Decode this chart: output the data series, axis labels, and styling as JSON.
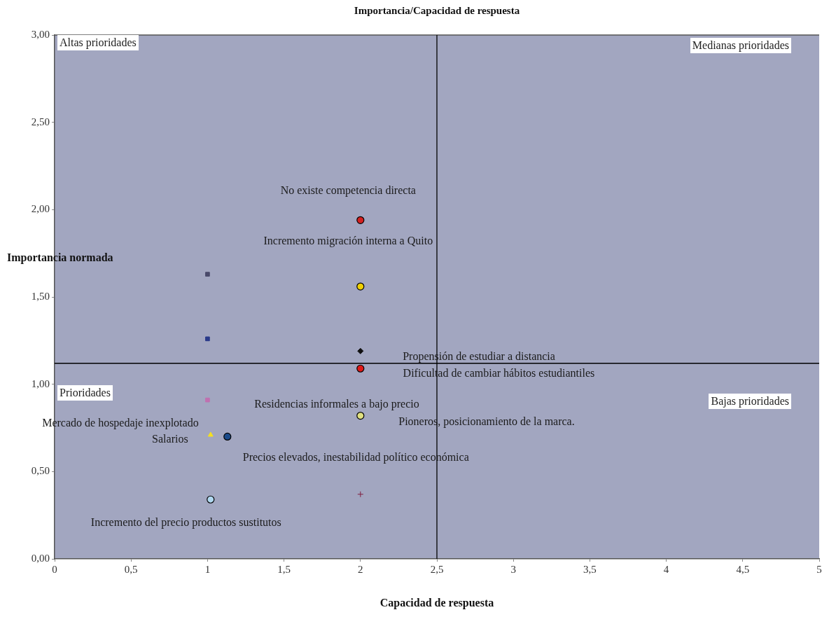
{
  "chart_data": {
    "type": "scatter",
    "title": "Importancia/Capacidad de respuesta",
    "xlabel": "Capacidad de respuesta",
    "ylabel": "Importancia normada",
    "xlim": [
      0,
      5
    ],
    "xticks": [
      0,
      {
        "value": 0.5,
        "label": "0,5"
      },
      1,
      {
        "value": 1.5,
        "label": "1,5"
      },
      2,
      {
        "value": 2.5,
        "label": "2,5"
      },
      3,
      {
        "value": 3.5,
        "label": "3,5"
      },
      4,
      {
        "value": 4.5,
        "label": "4,5"
      },
      5
    ],
    "ylim": [
      0,
      3
    ],
    "yticks": [
      {
        "value": 0,
        "label": "0,00"
      },
      {
        "value": 0.5,
        "label": "0,50"
      },
      {
        "value": 1,
        "label": "1,00"
      },
      {
        "value": 1.5,
        "label": "1,50"
      },
      {
        "value": 2,
        "label": "2,00"
      },
      {
        "value": 2.5,
        "label": "2,50"
      },
      {
        "value": 3,
        "label": "3,00"
      }
    ],
    "grid": false,
    "legend": false,
    "series": [
      {
        "x": [
          2
        ],
        "values": [
          1.94
        ],
        "color": "#d42020",
        "marker": "circle"
      },
      {
        "x": [
          2
        ],
        "values": [
          1.56
        ],
        "color": "#f0d000",
        "marker": "circle"
      },
      {
        "x": [
          2
        ],
        "values": [
          1.19
        ],
        "color": "#101010",
        "marker": "diamond"
      },
      {
        "x": [
          2
        ],
        "values": [
          1.09
        ],
        "color": "#e01818",
        "marker": "circle"
      },
      {
        "x": [
          1
        ],
        "values": [
          1.63
        ],
        "color": "#4a4a6a",
        "marker": "square"
      },
      {
        "x": [
          1
        ],
        "values": [
          1.26
        ],
        "color": "#2a3a8a",
        "marker": "square"
      },
      {
        "x": [
          1
        ],
        "values": [
          0.91
        ],
        "color": "#c070b0",
        "marker": "square"
      },
      {
        "x": [
          2
        ],
        "values": [
          0.82
        ],
        "color": "#e0e080",
        "marker": "circle"
      },
      {
        "x": [
          1.02
        ],
        "values": [
          0.71
        ],
        "color": "#f5e020",
        "marker": "triangle"
      },
      {
        "x": [
          1.13
        ],
        "values": [
          0.7
        ],
        "color": "#1a4a8a",
        "marker": "circle"
      },
      {
        "x": [
          1.02
        ],
        "values": [
          0.34
        ],
        "color": "#b0d8f0",
        "marker": "circle"
      },
      {
        "x": [
          2
        ],
        "values": [
          0.37
        ],
        "color": "#802040",
        "marker": "cross"
      }
    ],
    "ref_lines": [
      {
        "axis": "x",
        "value": 2.5,
        "color": "#000000"
      },
      {
        "axis": "y",
        "value": 1.12,
        "color": "#000000"
      }
    ],
    "annotations": [
      "Altas prioridades",
      "Medianas prioridades",
      "Prioridades",
      "Bajas prioridades",
      "No existe competencia directa",
      "Incremento migración interna a Quito",
      "Propensión de estudiar a distancia",
      "Dificultad de cambiar hábitos estudiantiles",
      "Residencias informales a bajo precio",
      "Mercado de hospedaje inexplotado",
      "Pioneros, posicionamiento de la marca.",
      "Salarios",
      "Precios elevados, inestabilidad político económica",
      "Incremento del precio productos sustitutos"
    ]
  }
}
